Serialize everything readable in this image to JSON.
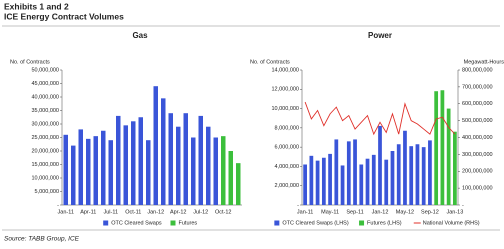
{
  "header": {
    "exhibit": "Exhibits 1 and 2",
    "title": "ICE Energy Contract Volumes"
  },
  "source": "Source: TABB Group, ICE",
  "chart_data": [
    {
      "type": "bar",
      "title": "Gas",
      "y_label": "No. of Contracts",
      "categories": [
        "Jan-11",
        null,
        null,
        "Apr-11",
        null,
        null,
        "Jul-11",
        null,
        null,
        "Oct-11",
        null,
        null,
        "Jan-12",
        null,
        null,
        "Apr-12",
        null,
        null,
        "Jul-12",
        null,
        null,
        "Oct-12",
        null,
        null
      ],
      "series": [
        {
          "name": "OTC Cleared Swaps",
          "color": "#3a55d8",
          "values": [
            26000000,
            22000000,
            28000000,
            24500000,
            25500000,
            27500000,
            24000000,
            33000000,
            29500000,
            31000000,
            32500000,
            24000000,
            44000000,
            39500000,
            34000000,
            29000000,
            34000000,
            25000000,
            33000000,
            29000000,
            25000000,
            null,
            null,
            null
          ]
        },
        {
          "name": "Futures",
          "color": "#3cbf3c",
          "values": [
            null,
            null,
            null,
            null,
            null,
            null,
            null,
            null,
            null,
            null,
            null,
            null,
            null,
            null,
            null,
            null,
            null,
            null,
            null,
            null,
            null,
            25500000,
            20000000,
            15500000
          ]
        }
      ],
      "ylim": [
        0,
        50000000
      ],
      "yticks": [
        {
          "value": 0,
          "label": "-"
        },
        {
          "value": 5000000,
          "label": "5,000,000"
        },
        {
          "value": 10000000,
          "label": "10,000,000"
        },
        {
          "value": 15000000,
          "label": "15,000,000"
        },
        {
          "value": 20000000,
          "label": "20,000,000"
        },
        {
          "value": 25000000,
          "label": "25,000,000"
        },
        {
          "value": 30000000,
          "label": "30,000,000"
        },
        {
          "value": 35000000,
          "label": "35,000,000"
        },
        {
          "value": 40000000,
          "label": "40,000,000"
        },
        {
          "value": 45000000,
          "label": "45,000,000"
        },
        {
          "value": 50000000,
          "label": "50,000,000"
        }
      ],
      "legend": "bottom"
    },
    {
      "type": "bar",
      "title": "Power",
      "y_label": "No. of Contracts",
      "y2_label": "Megawatt-Hours",
      "categories": [
        "Jan-11",
        null,
        null,
        null,
        "May-11",
        null,
        null,
        null,
        "Sep-11",
        null,
        null,
        null,
        "Jan-12",
        null,
        null,
        null,
        "May-12",
        null,
        null,
        null,
        "Sep-12",
        null,
        null,
        null,
        "Jan-13"
      ],
      "series": [
        {
          "name": "OTC Cleared Swaps (LHS)",
          "color": "#3a55d8",
          "values": [
            4200000,
            5100000,
            4600000,
            4900000,
            5300000,
            6800000,
            4100000,
            6600000,
            6800000,
            4200000,
            4800000,
            5200000,
            8200000,
            4700000,
            5600000,
            6300000,
            7700000,
            6100000,
            6300000,
            6000000,
            6700000,
            null,
            null,
            null,
            null
          ]
        },
        {
          "name": "Futures (LHS)",
          "color": "#3cbf3c",
          "values": [
            null,
            null,
            null,
            null,
            null,
            null,
            null,
            null,
            null,
            null,
            null,
            null,
            null,
            null,
            null,
            null,
            null,
            null,
            null,
            null,
            null,
            11800000,
            11900000,
            10000000,
            7600000
          ]
        },
        {
          "name": "National Volume (RHS)",
          "color": "#e0302a",
          "type": "line",
          "axis": "y2",
          "values": [
            610000000,
            510000000,
            560000000,
            470000000,
            540000000,
            580000000,
            500000000,
            530000000,
            450000000,
            490000000,
            530000000,
            420000000,
            490000000,
            430000000,
            540000000,
            420000000,
            600000000,
            500000000,
            480000000,
            450000000,
            420000000,
            510000000,
            520000000,
            460000000,
            420000000
          ]
        }
      ],
      "ylim": [
        0,
        14000000
      ],
      "yticks": [
        {
          "value": 0,
          "label": "-"
        },
        {
          "value": 2000000,
          "label": "2,000,000"
        },
        {
          "value": 4000000,
          "label": "4,000,000"
        },
        {
          "value": 6000000,
          "label": "6,000,000"
        },
        {
          "value": 8000000,
          "label": "8,000,000"
        },
        {
          "value": 10000000,
          "label": "10,000,000"
        },
        {
          "value": 12000000,
          "label": "12,000,000"
        },
        {
          "value": 14000000,
          "label": "14,000,000"
        }
      ],
      "y2lim": [
        0,
        800000000
      ],
      "y2ticks": [
        {
          "value": 0,
          "label": "-"
        },
        {
          "value": 100000000,
          "label": "100,000,000"
        },
        {
          "value": 200000000,
          "label": "200,000,000"
        },
        {
          "value": 300000000,
          "label": "300,000,000"
        },
        {
          "value": 400000000,
          "label": "400,000,000"
        },
        {
          "value": 500000000,
          "label": "500,000,000"
        },
        {
          "value": 600000000,
          "label": "600,000,000"
        },
        {
          "value": 700000000,
          "label": "700,000,000"
        },
        {
          "value": 800000000,
          "label": "800,000,000"
        }
      ],
      "legend": "bottom"
    }
  ]
}
